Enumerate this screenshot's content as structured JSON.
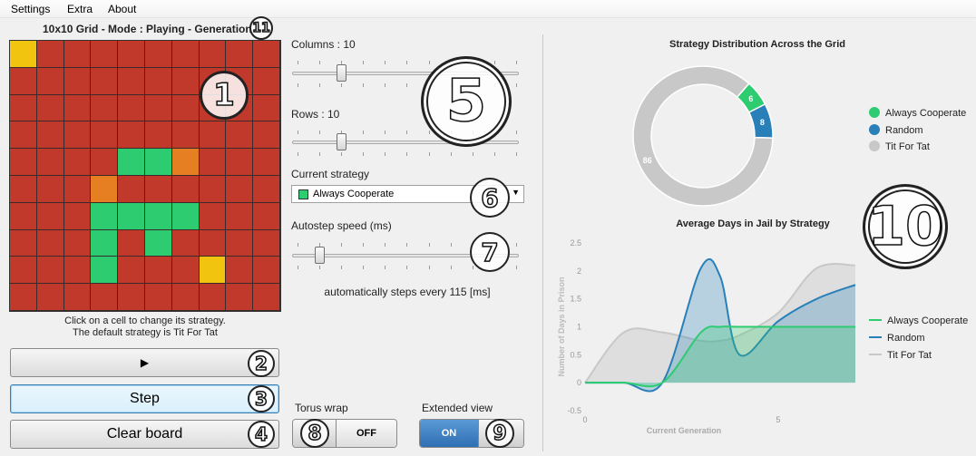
{
  "menu": [
    "Settings",
    "Extra",
    "About"
  ],
  "grid": {
    "title": "10x10 Grid - Mode : Playing - Generation 7",
    "hint_line1": "Click on a cell to change its strategy.",
    "hint_line2": "The default strategy is Tit For Tat",
    "colors": {
      "R": "#c0392b",
      "G": "#2ecc71",
      "O": "#e67e22",
      "Y": "#f1c40f"
    },
    "rows": [
      "YRRRRRRRRR",
      "RRRRRRRRRR",
      "RRRRRRRRRR",
      "RRRRRRRRRR",
      "RRRRGGORRR",
      "RRRORRRRRR",
      "RRRGGGGRRR",
      "RRRGRGRRRR",
      "RRRGRRRYRR",
      "RRRRRRRRRR"
    ]
  },
  "callouts": [
    "1",
    "2",
    "3",
    "4",
    "5",
    "6",
    "7",
    "8",
    "9",
    "10",
    "11"
  ],
  "buttons": {
    "play_label": "▶",
    "step_label": "Step",
    "clear_label": "Clear board"
  },
  "controls": {
    "columns_label": "Columns : 10",
    "columns_value": 10,
    "rows_label": "Rows : 10",
    "rows_value": 10,
    "strategy_label": "Current strategy",
    "strategy_value": "Always Cooperate",
    "strategy_color": "#2ecc71",
    "speed_label": "Autostep speed (ms)",
    "speed_note": "automatically steps every 115 [ms]",
    "torus_label": "Torus wrap",
    "torus_state": "OFF",
    "extended_label": "Extended view",
    "extended_state": "ON"
  },
  "charts": {
    "donut_title": "Strategy Distribution Across the Grid",
    "line_title": "Average Days in Jail by Strategy",
    "legend": [
      {
        "name": "Always Cooperate",
        "color": "#2ecc71"
      },
      {
        "name": "Random",
        "color": "#2980b9"
      },
      {
        "name": "Tit For Tat",
        "color": "#c8c8c8"
      }
    ]
  },
  "chart_data": [
    {
      "type": "pie",
      "title": "Strategy Distribution Across the Grid",
      "labels": [
        "Always Cooperate",
        "Random",
        "Tit For Tat"
      ],
      "values": [
        6,
        8,
        86
      ],
      "colors": [
        "#2ecc71",
        "#2980b9",
        "#c8c8c8"
      ],
      "legend": "right"
    },
    {
      "type": "area",
      "title": "Average Days in Jail by Strategy",
      "xlabel": "Current Generation",
      "ylabel": "Number of Days in Prison",
      "x": [
        0,
        1,
        2,
        3,
        3.5,
        4,
        5,
        6,
        7
      ],
      "xticks": [
        "0",
        "5"
      ],
      "yticks": [
        "-0.5",
        "0",
        "0.5",
        "1",
        "1.5",
        "2",
        "2.5"
      ],
      "ylim": [
        -0.5,
        2.5
      ],
      "xlim": [
        0,
        7
      ],
      "series": [
        {
          "name": "Always Cooperate",
          "color": "#2ecc71",
          "values": [
            0,
            0,
            0,
            0.9,
            1,
            1,
            1,
            1,
            1
          ]
        },
        {
          "name": "Random",
          "color": "#2980b9",
          "values": [
            0,
            0,
            0,
            2.05,
            1.9,
            0.5,
            1.1,
            1.5,
            1.75
          ]
        },
        {
          "name": "Tit For Tat",
          "color": "#c8c8c8",
          "values": [
            0,
            0.9,
            0.9,
            0.75,
            0.75,
            0.85,
            1.25,
            2.05,
            2.1
          ]
        }
      ],
      "legend": "right"
    }
  ]
}
